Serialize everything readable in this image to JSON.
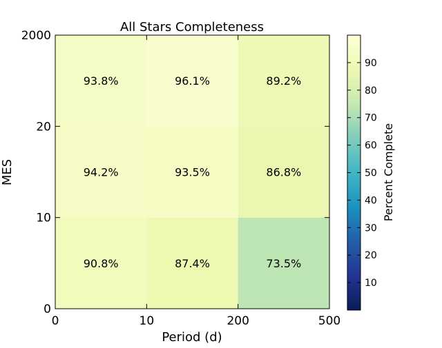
{
  "chart_data": {
    "type": "heatmap",
    "title": "All Stars Completeness",
    "xlabel": "Period (d)",
    "ylabel": "MES",
    "x_ticks": [
      "0",
      "10",
      "200",
      "500"
    ],
    "y_ticks": [
      "0",
      "10",
      "20",
      "2000"
    ],
    "x_bins": [
      "0-10",
      "10-200",
      "200-500"
    ],
    "y_bins": [
      "0-10",
      "10-20",
      "20-2000"
    ],
    "values": [
      [
        90.8,
        87.4,
        73.5
      ],
      [
        94.2,
        93.5,
        86.8
      ],
      [
        93.8,
        96.1,
        89.2
      ]
    ],
    "cell_labels": [
      [
        "90.8%",
        "87.4%",
        "73.5%"
      ],
      [
        "94.2%",
        "93.5%",
        "86.8%"
      ],
      [
        "93.8%",
        "96.1%",
        "89.2%"
      ]
    ],
    "colorbar": {
      "label": "Percent Complete",
      "range": [
        0,
        100
      ],
      "ticks": [
        "10",
        "20",
        "30",
        "40",
        "50",
        "60",
        "70",
        "80",
        "90"
      ],
      "colormap": "YlGnBu_r"
    },
    "grid": false
  }
}
